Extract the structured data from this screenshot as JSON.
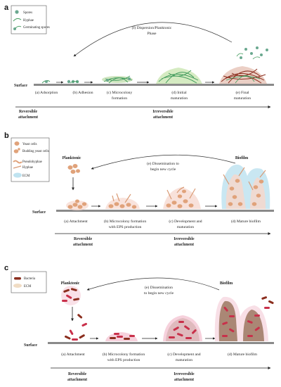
{
  "panels": {
    "a": {
      "letter": "a",
      "legend": [
        "Spores",
        "Hyphae",
        "Germinating spores"
      ],
      "surface_label": "Surface",
      "dispersion_label_1": "(f) Dispersion/Planktonic",
      "dispersion_label_2": "Phase",
      "stages": [
        [
          "(a) Adsorption"
        ],
        [
          "(b) Adhesion"
        ],
        [
          "(c) Microcolony",
          "formation"
        ],
        [
          "(d) Initial",
          "maturation"
        ],
        [
          "(e) Final",
          "maturation"
        ]
      ],
      "reversible": [
        "Reversible",
        "attachment"
      ],
      "irreversible": [
        "Irreversible",
        "attachment"
      ]
    },
    "b": {
      "letter": "b",
      "legend": [
        "Yeast cells",
        "Budding yeast cells",
        "Pseudohyphae",
        "Hyphae",
        "ECM"
      ],
      "planktonic": "Planktonic",
      "biofilm": "Biofilm",
      "cycle": [
        "(e) Dissemination to",
        "begin new cycle"
      ],
      "surface_label": "Surface",
      "stages": [
        [
          "(a) Attachment"
        ],
        [
          "(b) Microcolony formation",
          "with EPS production"
        ],
        [
          "(c) Development and",
          "maturation"
        ],
        [
          "(d) Mature biofilm"
        ]
      ],
      "reversible": [
        "Reversible",
        "attachment"
      ],
      "irreversible": [
        "Irreversible",
        "attachment"
      ]
    },
    "c": {
      "letter": "c",
      "legend": [
        "Bacteria",
        "ECM"
      ],
      "planktonic": "Planktonic",
      "biofilm": "Biofilm",
      "cycle": [
        "(e) Dissemination",
        "to begin new cycle"
      ],
      "surface_label": "Surface",
      "stages": [
        [
          "(a) Attachment"
        ],
        [
          "(b) Microcolony formation",
          "with EPS production"
        ],
        [
          "(c) Development and",
          "maturation"
        ],
        [
          "(d) Mature biofilm"
        ]
      ],
      "reversible": [
        "Reversible",
        "attachment"
      ],
      "irreversible": [
        "Irreversible",
        "attachment"
      ]
    }
  },
  "colors": {
    "surface": "#8a8a8a",
    "spore": "#6aa88f",
    "hyphae_green": "#3f9a5a",
    "hyphae_red": "#8b2e1e",
    "yeast": "#e0a27a",
    "ecm": "#bfe3f0",
    "bacteria": "#c9304a",
    "bacteria_ecm": "#f4c9d6",
    "brown_film": "#9c7860"
  }
}
